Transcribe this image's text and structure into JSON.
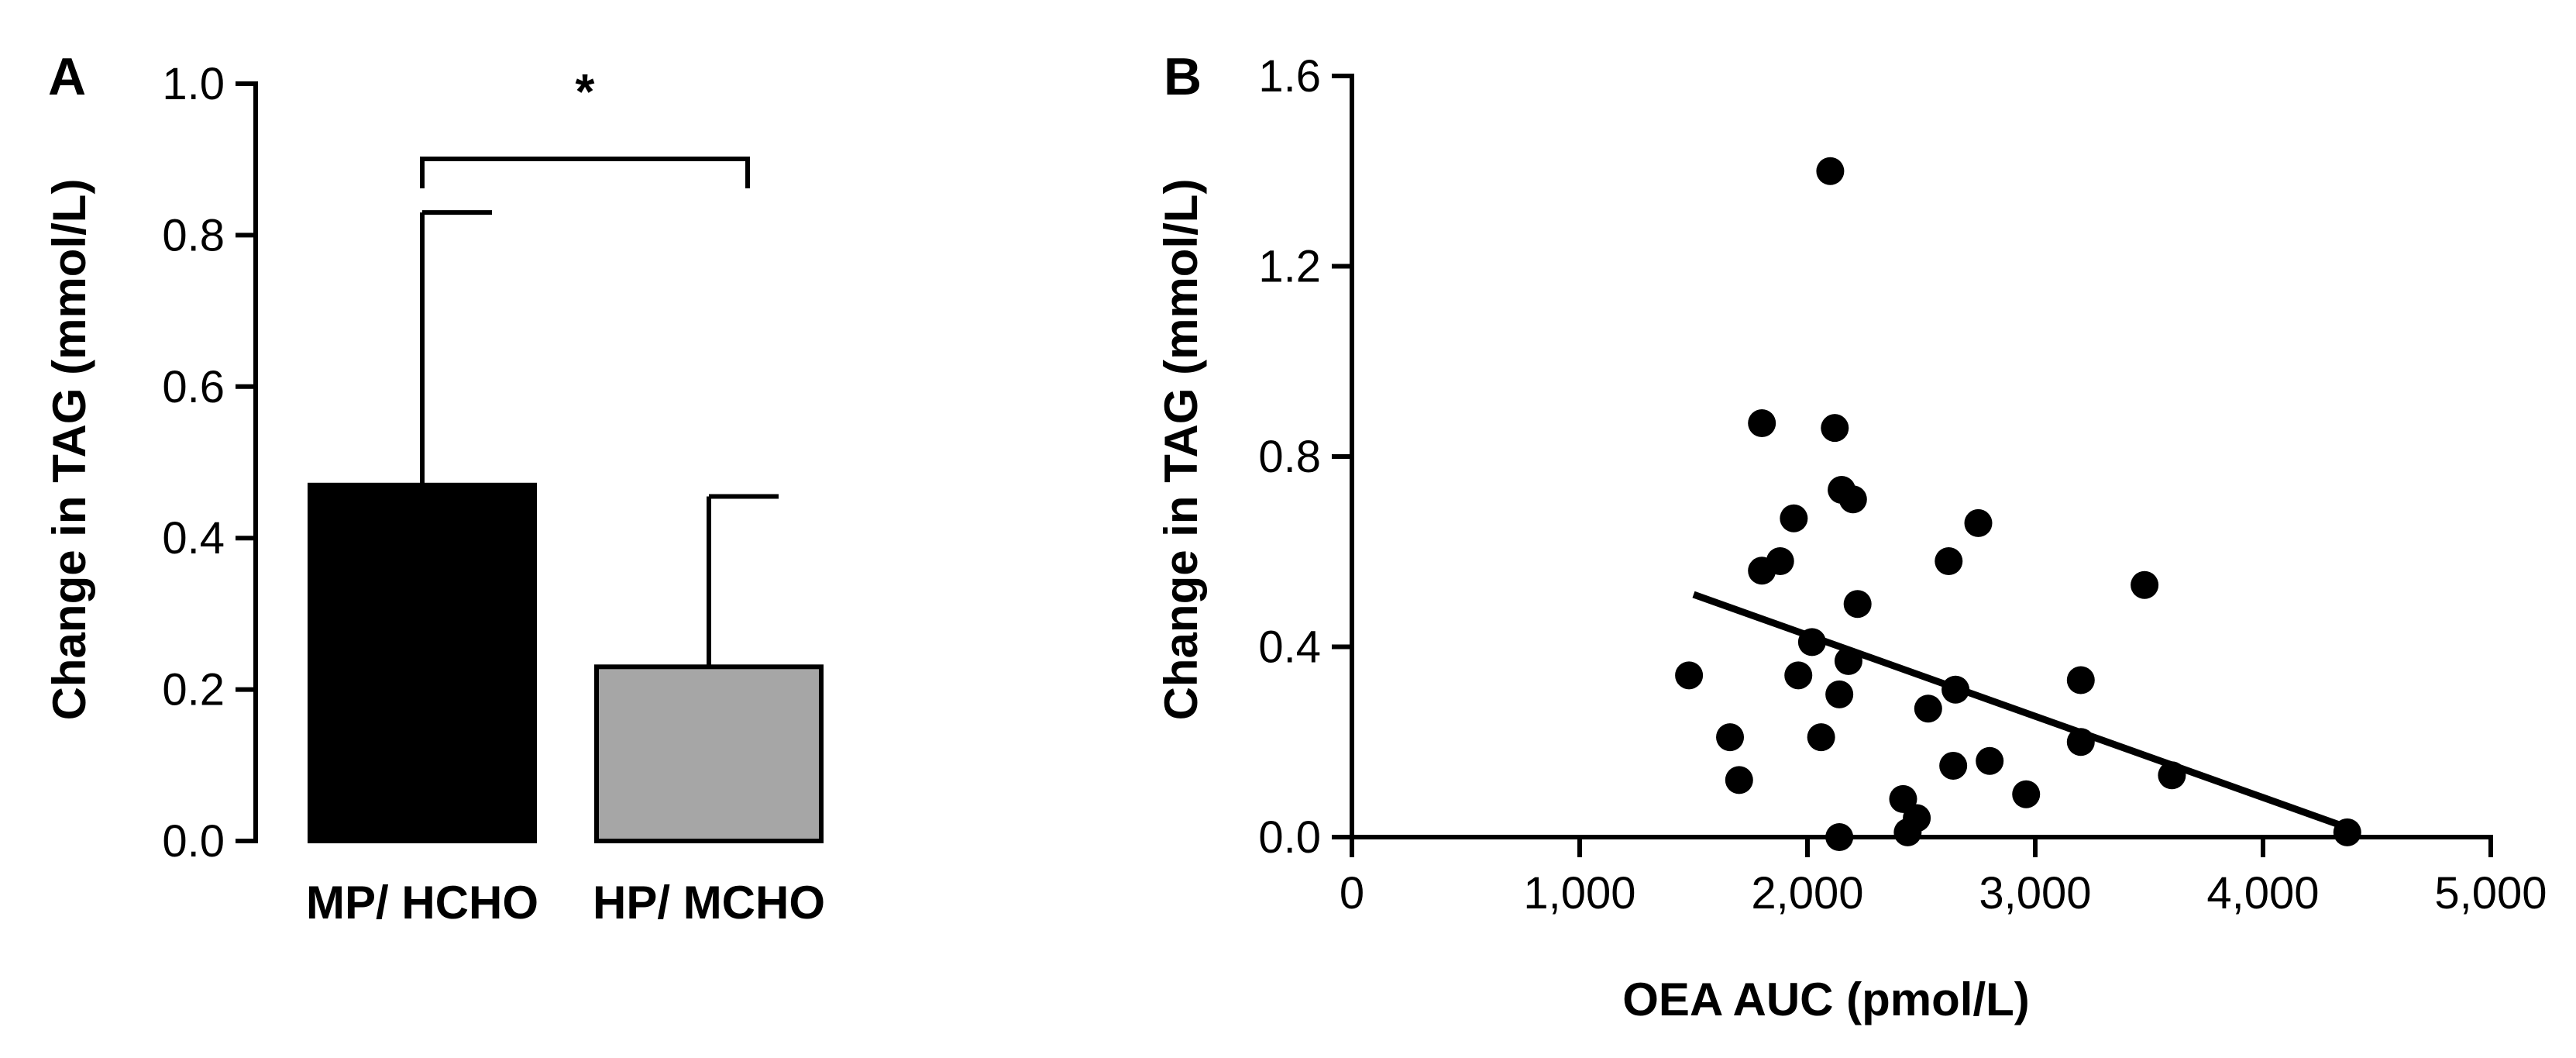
{
  "chart_data": [
    {
      "panel": "A",
      "type": "bar",
      "categories": [
        "MP/ HCHO",
        "HP/ MCHO"
      ],
      "values": [
        0.47,
        0.23
      ],
      "error_upper": [
        0.83,
        0.455
      ],
      "colors": [
        "#000000",
        "#a6a6a6"
      ],
      "ylabel": "Change in TAG (mmol/L)",
      "xlabel": "",
      "ylim": [
        0,
        1.0
      ],
      "yticks": [
        "0.0",
        "0.2",
        "0.4",
        "0.6",
        "0.8",
        "1.0"
      ],
      "annotation": "*"
    },
    {
      "panel": "B",
      "type": "scatter",
      "xlabel": "OEA AUC (pmol/L)",
      "ylabel": "Change in TAG (mmol/L)",
      "xlim": [
        0,
        5000
      ],
      "ylim": [
        0,
        1.6
      ],
      "xticks": [
        "0",
        "1,000",
        "2,000",
        "3,000",
        "4,000",
        "5,000"
      ],
      "yticks": [
        "0.0",
        "0.4",
        "0.8",
        "1.2",
        "1.6"
      ],
      "points": [
        {
          "x": 2100,
          "y": 1.4
        },
        {
          "x": 1800,
          "y": 0.87
        },
        {
          "x": 2120,
          "y": 0.86
        },
        {
          "x": 2150,
          "y": 0.73
        },
        {
          "x": 2200,
          "y": 0.71
        },
        {
          "x": 1940,
          "y": 0.67
        },
        {
          "x": 2750,
          "y": 0.66
        },
        {
          "x": 1880,
          "y": 0.58
        },
        {
          "x": 1800,
          "y": 0.56
        },
        {
          "x": 2620,
          "y": 0.58
        },
        {
          "x": 3480,
          "y": 0.53
        },
        {
          "x": 2220,
          "y": 0.49
        },
        {
          "x": 2020,
          "y": 0.41
        },
        {
          "x": 2180,
          "y": 0.37
        },
        {
          "x": 1960,
          "y": 0.34
        },
        {
          "x": 1480,
          "y": 0.34
        },
        {
          "x": 3200,
          "y": 0.33
        },
        {
          "x": 2650,
          "y": 0.31
        },
        {
          "x": 2140,
          "y": 0.3
        },
        {
          "x": 2530,
          "y": 0.27
        },
        {
          "x": 2060,
          "y": 0.21
        },
        {
          "x": 1660,
          "y": 0.21
        },
        {
          "x": 3200,
          "y": 0.2
        },
        {
          "x": 2800,
          "y": 0.16
        },
        {
          "x": 2640,
          "y": 0.15
        },
        {
          "x": 3600,
          "y": 0.13
        },
        {
          "x": 1700,
          "y": 0.12
        },
        {
          "x": 2960,
          "y": 0.09
        },
        {
          "x": 2420,
          "y": 0.08
        },
        {
          "x": 2480,
          "y": 0.04
        },
        {
          "x": 2440,
          "y": 0.01
        },
        {
          "x": 2140,
          "y": 0.0
        },
        {
          "x": 4370,
          "y": 0.01
        }
      ],
      "trendline": {
        "x": [
          1500,
          4370
        ],
        "y": [
          0.51,
          0.02
        ]
      }
    }
  ],
  "colors": {
    "bar_a": "#000000",
    "bar_b": "#a6a6a6",
    "ink": "#000000"
  }
}
